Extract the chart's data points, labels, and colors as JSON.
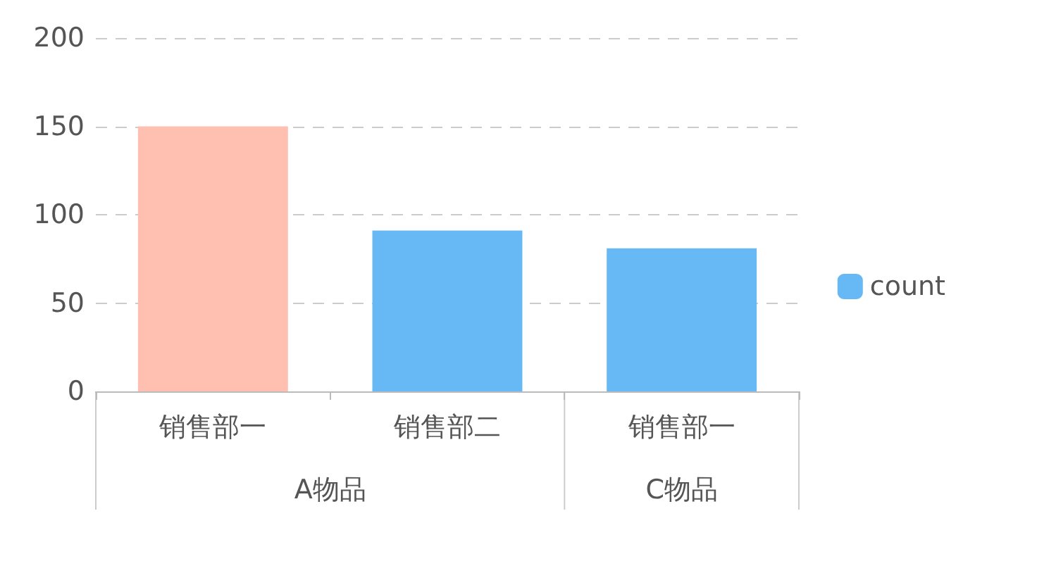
{
  "chart_data": {
    "type": "bar",
    "categories": [
      "销售部一",
      "销售部二",
      "销售部一"
    ],
    "series": [
      {
        "name": "count",
        "color": "#66b9f5",
        "colors": [
          "#ffbfb1",
          "#66b9f5",
          "#66b9f5"
        ],
        "values": [
          150,
          91,
          81
        ]
      }
    ],
    "ylim": [
      0,
      200
    ],
    "yticks": [
      0,
      50,
      100,
      150,
      200
    ],
    "grid": "y",
    "legend": "right",
    "annotations": [
      "A物品",
      "C物品"
    ]
  }
}
